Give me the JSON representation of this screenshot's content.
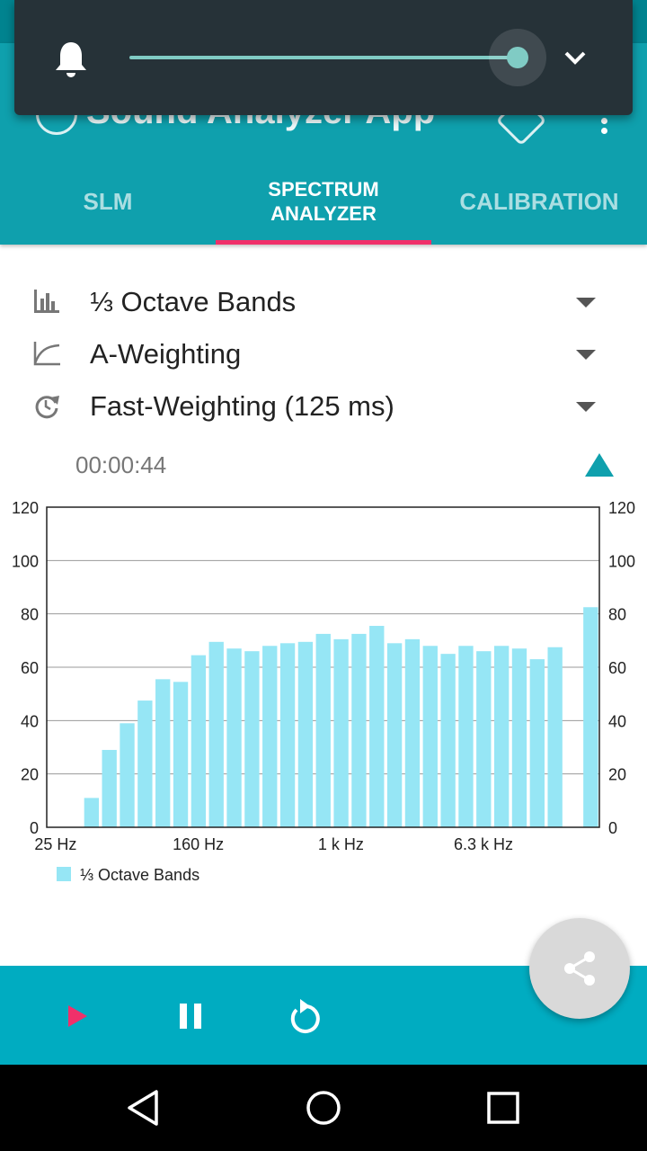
{
  "app": {
    "title": "Sound Analyzer App"
  },
  "tabs": [
    {
      "label": "SLM"
    },
    {
      "label_line1": "SPECTRUM",
      "label_line2": "ANALYZER"
    },
    {
      "label": "CALIBRATION"
    }
  ],
  "volume_panel": {
    "level": 1.0,
    "icon": "bell-icon",
    "expand_icon": "chevron-down-icon"
  },
  "settings": {
    "bands": "⅓ Octave Bands",
    "weighting": "A-Weighting",
    "time_weighting": "Fast-Weighting (125 ms)"
  },
  "timer": "00:00:44",
  "chart_data": {
    "type": "bar",
    "y_ticks": [
      "0",
      "20",
      "40",
      "60",
      "80",
      "100",
      "120"
    ],
    "ylim": [
      0,
      120
    ],
    "x_tick_labels": [
      "25 Hz",
      "160 Hz",
      "1 k Hz",
      "6.3 k Hz"
    ],
    "x_tick_bar_index": [
      0,
      8,
      16,
      24
    ],
    "legend": "⅓ Octave Bands",
    "bar_color": "#96e6f5",
    "values": [
      0,
      0,
      11,
      29,
      39,
      47.5,
      55.5,
      54.5,
      64.5,
      69.5,
      67,
      66,
      68,
      69,
      69.5,
      72.5,
      70.5,
      72.5,
      75.5,
      69,
      70.5,
      68,
      65,
      68,
      66,
      68,
      67,
      63,
      67.5,
      0,
      82.5
    ]
  },
  "controls": {
    "play": "play-icon",
    "pause": "pause-icon",
    "reset": "reset-icon",
    "share": "share-icon"
  },
  "colors": {
    "primary": "#0fa0ad",
    "accent": "#f0306a",
    "bottom_bar": "#00acc1"
  }
}
